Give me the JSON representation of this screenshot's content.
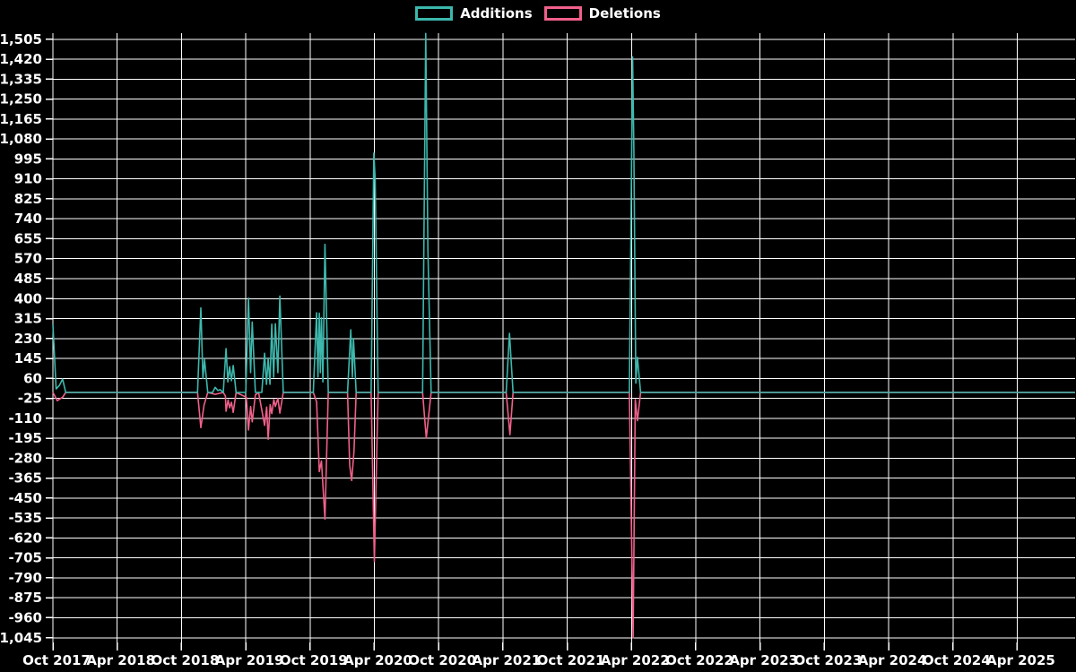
{
  "colors": {
    "background": "#000000",
    "grid": "#ffffff",
    "text": "#ffffff",
    "additions": "#3db8ad",
    "deletions": "#f0608a"
  },
  "chart_data": {
    "type": "line",
    "title": "",
    "xlabel": "",
    "ylabel": "",
    "grid": true,
    "legend_position": "top-center",
    "x_axis": {
      "unit": "months since Oct 2017",
      "t_max": 95.4,
      "ticks": [
        {
          "t": 0,
          "label": "Oct 2017"
        },
        {
          "t": 6,
          "label": "Apr 2018"
        },
        {
          "t": 12,
          "label": "Oct 2018"
        },
        {
          "t": 18,
          "label": "Apr 2019"
        },
        {
          "t": 24,
          "label": "Oct 2019"
        },
        {
          "t": 30,
          "label": "Apr 2020"
        },
        {
          "t": 36,
          "label": "Oct 2020"
        },
        {
          "t": 42,
          "label": "Apr 2021"
        },
        {
          "t": 48,
          "label": "Oct 2021"
        },
        {
          "t": 54,
          "label": "Apr 2022"
        },
        {
          "t": 60,
          "label": "Oct 2022"
        },
        {
          "t": 66,
          "label": "Apr 2023"
        },
        {
          "t": 72,
          "label": "Oct 2023"
        },
        {
          "t": 78,
          "label": "Apr 2024"
        },
        {
          "t": 84,
          "label": "Oct 2024"
        },
        {
          "t": 90,
          "label": "Apr 2025"
        }
      ]
    },
    "y_axis": {
      "tick_step": 85,
      "range": [
        -1065,
        1531
      ],
      "ticks": [
        {
          "v": 1505,
          "label": "1,505"
        },
        {
          "v": 1420,
          "label": "1,420"
        },
        {
          "v": 1335,
          "label": "1,335"
        },
        {
          "v": 1250,
          "label": "1,250"
        },
        {
          "v": 1165,
          "label": "1,165"
        },
        {
          "v": 1080,
          "label": "1,080"
        },
        {
          "v": 995,
          "label": "995"
        },
        {
          "v": 910,
          "label": "910"
        },
        {
          "v": 825,
          "label": "825"
        },
        {
          "v": 740,
          "label": "740"
        },
        {
          "v": 655,
          "label": "655"
        },
        {
          "v": 570,
          "label": "570"
        },
        {
          "v": 485,
          "label": "485"
        },
        {
          "v": 400,
          "label": "400"
        },
        {
          "v": 315,
          "label": "315"
        },
        {
          "v": 230,
          "label": "230"
        },
        {
          "v": 145,
          "label": "145"
        },
        {
          "v": 60,
          "label": "60"
        },
        {
          "v": -25,
          "label": "-25"
        },
        {
          "v": -110,
          "label": "-110"
        },
        {
          "v": -195,
          "label": "-195"
        },
        {
          "v": -280,
          "label": "-280"
        },
        {
          "v": -365,
          "label": "-365"
        },
        {
          "v": -450,
          "label": "-450"
        },
        {
          "v": -535,
          "label": "-535"
        },
        {
          "v": -620,
          "label": "-620"
        },
        {
          "v": -705,
          "label": "-705"
        },
        {
          "v": -790,
          "label": "-790"
        },
        {
          "v": -875,
          "label": "-875"
        },
        {
          "v": -960,
          "label": "-960"
        },
        {
          "v": -1045,
          "label": "-1,045"
        }
      ]
    },
    "series": [
      {
        "name": "Additions",
        "color": "#3db8ad",
        "points": [
          [
            0,
            290
          ],
          [
            0.3,
            15
          ],
          [
            0.6,
            30
          ],
          [
            0.9,
            57
          ],
          [
            1.2,
            0
          ],
          [
            13.5,
            0
          ],
          [
            13.81,
            360
          ],
          [
            14.0,
            60
          ],
          [
            14.15,
            140
          ],
          [
            14.45,
            0
          ],
          [
            14.9,
            0
          ],
          [
            15.15,
            22
          ],
          [
            15.4,
            8
          ],
          [
            15.6,
            12
          ],
          [
            15.9,
            0
          ],
          [
            16.16,
            187
          ],
          [
            16.33,
            45
          ],
          [
            16.49,
            110
          ],
          [
            16.66,
            50
          ],
          [
            16.83,
            115
          ],
          [
            17.1,
            0
          ],
          [
            18.0,
            0
          ],
          [
            18.25,
            402
          ],
          [
            18.45,
            85
          ],
          [
            18.6,
            300
          ],
          [
            18.9,
            0
          ],
          [
            19.5,
            0
          ],
          [
            19.76,
            167
          ],
          [
            19.93,
            35
          ],
          [
            20.09,
            147
          ],
          [
            20.26,
            35
          ],
          [
            20.43,
            291
          ],
          [
            20.6,
            65
          ],
          [
            20.76,
            293
          ],
          [
            21.0,
            85
          ],
          [
            21.18,
            411
          ],
          [
            21.5,
            0
          ],
          [
            24.3,
            0
          ],
          [
            24.61,
            340
          ],
          [
            24.74,
            65
          ],
          [
            24.86,
            338
          ],
          [
            24.96,
            85
          ],
          [
            25.06,
            319
          ],
          [
            25.2,
            45
          ],
          [
            25.39,
            631
          ],
          [
            25.7,
            0
          ],
          [
            27.5,
            0
          ],
          [
            27.8,
            267
          ],
          [
            27.95,
            65
          ],
          [
            28.05,
            230
          ],
          [
            28.3,
            0
          ],
          [
            29.7,
            0
          ],
          [
            29.95,
            1020
          ],
          [
            30.08,
            910
          ],
          [
            30.35,
            0
          ],
          [
            34.5,
            0
          ],
          [
            34.8,
            1530
          ],
          [
            35.0,
            610
          ],
          [
            35.3,
            0
          ],
          [
            42.3,
            0
          ],
          [
            42.61,
            252
          ],
          [
            42.95,
            0
          ],
          [
            53.8,
            0
          ],
          [
            54.1,
            1430
          ],
          [
            54.22,
            1040
          ],
          [
            54.4,
            40
          ],
          [
            54.55,
            150
          ],
          [
            54.85,
            0
          ],
          [
            95.4,
            0
          ]
        ]
      },
      {
        "name": "Deletions",
        "color": "#f0608a",
        "points": [
          [
            0,
            0
          ],
          [
            0.15,
            -12
          ],
          [
            0.4,
            -35
          ],
          [
            0.9,
            -20
          ],
          [
            1.2,
            0
          ],
          [
            13.5,
            0
          ],
          [
            13.81,
            -150
          ],
          [
            14.1,
            -55
          ],
          [
            14.45,
            0
          ],
          [
            15.15,
            -8
          ],
          [
            15.9,
            0
          ],
          [
            16.1,
            -15
          ],
          [
            16.16,
            -80
          ],
          [
            16.35,
            -32
          ],
          [
            16.49,
            -65
          ],
          [
            16.66,
            -42
          ],
          [
            16.83,
            -85
          ],
          [
            17.1,
            0
          ],
          [
            18.05,
            -20
          ],
          [
            18.25,
            -160
          ],
          [
            18.45,
            -60
          ],
          [
            18.6,
            -125
          ],
          [
            18.9,
            -10
          ],
          [
            19.2,
            0
          ],
          [
            19.76,
            -140
          ],
          [
            19.95,
            -62
          ],
          [
            20.09,
            -199
          ],
          [
            20.28,
            -52
          ],
          [
            20.43,
            -90
          ],
          [
            20.62,
            -30
          ],
          [
            20.76,
            -60
          ],
          [
            21.0,
            -25
          ],
          [
            21.18,
            -88
          ],
          [
            21.5,
            0
          ],
          [
            24.3,
            0
          ],
          [
            24.61,
            -40
          ],
          [
            24.86,
            -337
          ],
          [
            25.06,
            -292
          ],
          [
            25.39,
            -540
          ],
          [
            25.7,
            0
          ],
          [
            27.5,
            0
          ],
          [
            27.7,
            -310
          ],
          [
            27.88,
            -375
          ],
          [
            28.1,
            -250
          ],
          [
            28.3,
            0
          ],
          [
            29.7,
            0
          ],
          [
            30.0,
            -720
          ],
          [
            30.35,
            0
          ],
          [
            34.5,
            0
          ],
          [
            34.85,
            -195
          ],
          [
            35.3,
            0
          ],
          [
            42.3,
            0
          ],
          [
            42.65,
            -180
          ],
          [
            42.95,
            0
          ],
          [
            53.8,
            0
          ],
          [
            54.15,
            -1045
          ],
          [
            54.35,
            -30
          ],
          [
            54.55,
            -120
          ],
          [
            54.85,
            0
          ],
          [
            95.4,
            0
          ]
        ]
      }
    ]
  }
}
